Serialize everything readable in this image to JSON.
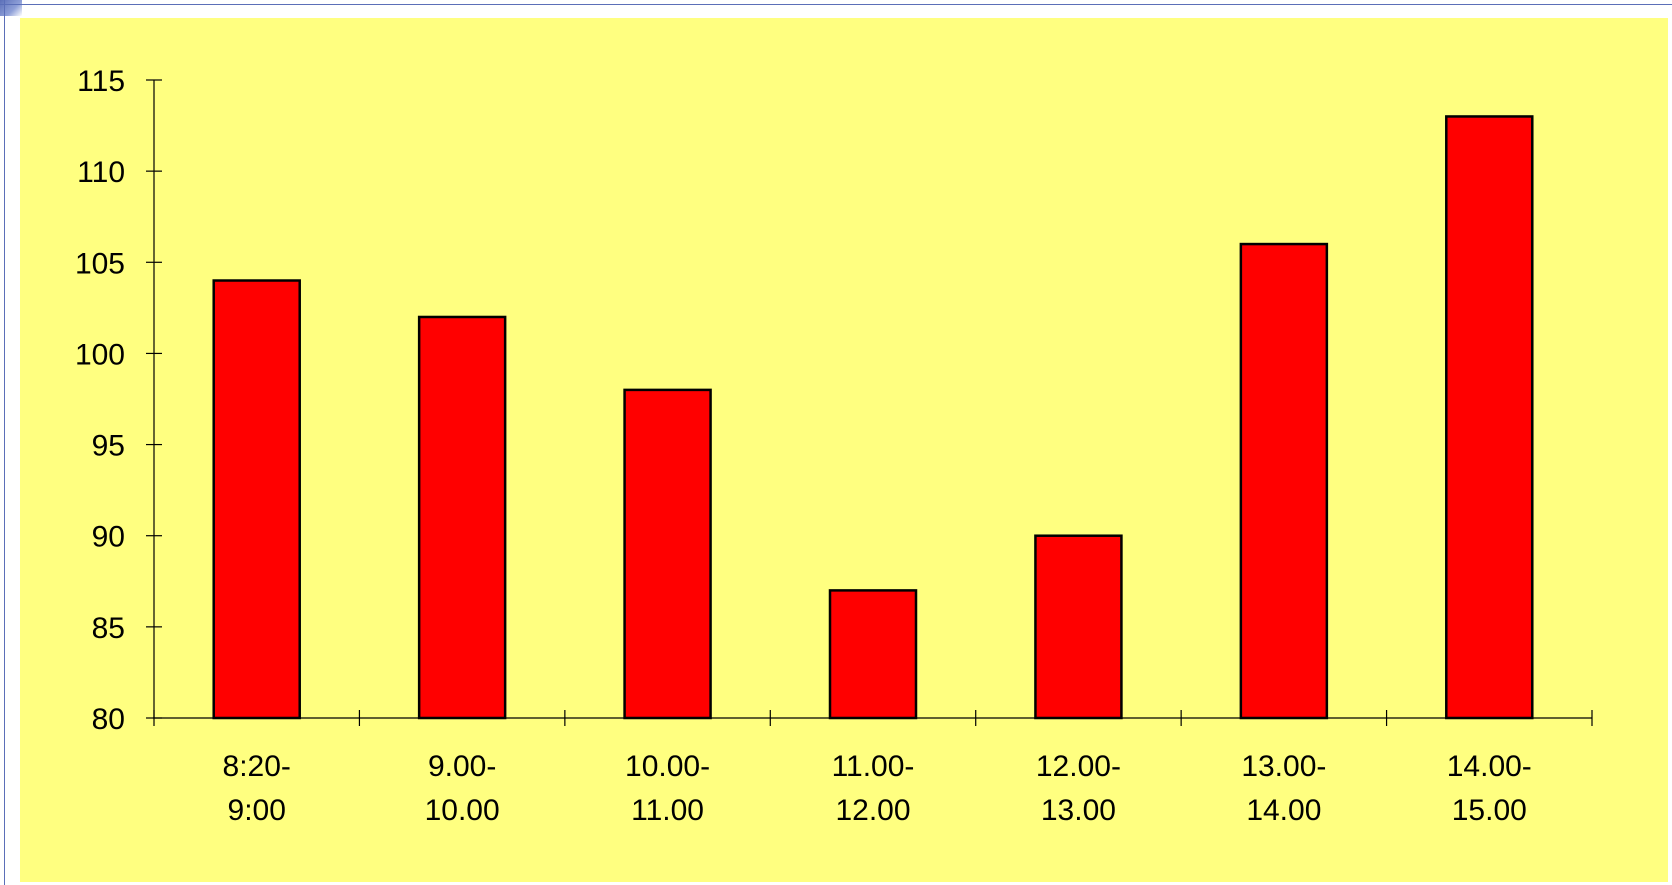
{
  "chart_data": {
    "type": "bar",
    "categories": [
      [
        "8:20-",
        "9:00"
      ],
      [
        "9.00-",
        "10.00"
      ],
      [
        "10.00-",
        "11.00"
      ],
      [
        "11.00-",
        "12.00"
      ],
      [
        "12.00-",
        "13.00"
      ],
      [
        "13.00-",
        "14.00"
      ],
      [
        "14.00-",
        "15.00"
      ]
    ],
    "values": [
      104,
      102,
      98,
      87,
      90,
      106,
      113
    ],
    "ylim": [
      80,
      115
    ],
    "yticks": [
      "80",
      "85",
      "90",
      "95",
      "100",
      "105",
      "110",
      "115"
    ],
    "title": "",
    "xlabel": "",
    "ylabel": "",
    "grid": false,
    "legend": "none",
    "colors": {
      "bar_fill": "#ff0000",
      "bar_stroke": "#000000",
      "plot_background": "#ffff80"
    }
  }
}
